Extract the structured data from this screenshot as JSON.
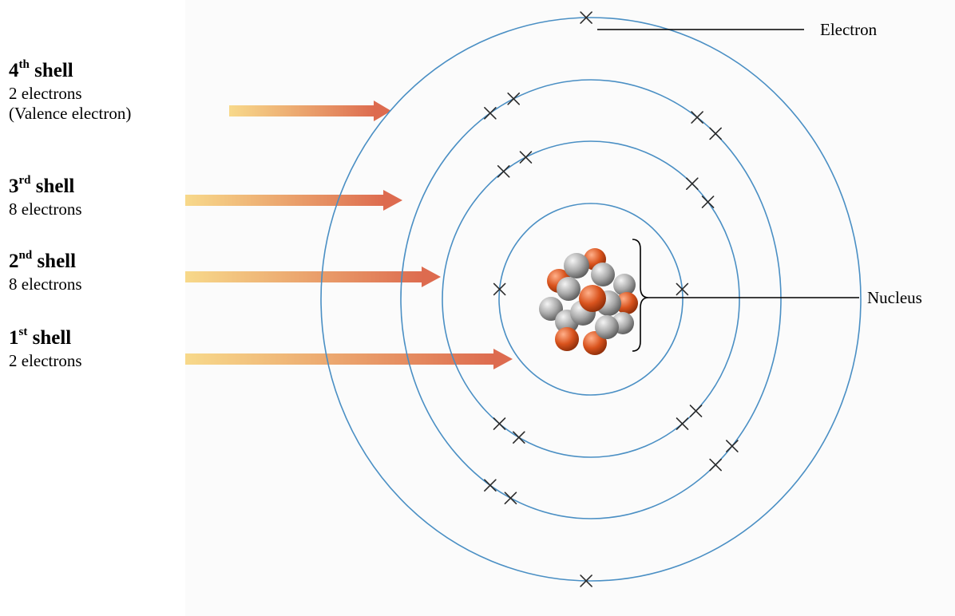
{
  "shells": [
    {
      "number": "4",
      "ordinal": "th",
      "word": "shell",
      "count_text": "2 electrons",
      "note": "(Valence electron)",
      "electrons": 2
    },
    {
      "number": "3",
      "ordinal": "rd",
      "word": "shell",
      "count_text": "8 electrons",
      "note": "",
      "electrons": 8
    },
    {
      "number": "2",
      "ordinal": "nd",
      "word": "shell",
      "count_text": "8 electrons",
      "note": "",
      "electrons": 8
    },
    {
      "number": "1",
      "ordinal": "st",
      "word": "shell",
      "count_text": "2 electrons",
      "note": "",
      "electrons": 2
    }
  ],
  "callouts": {
    "electron": "Electron",
    "nucleus": "Nucleus"
  },
  "colors": {
    "orbit": "#4a8fc4",
    "proton": "#d9531d",
    "neutron": "#a9a9a9",
    "arrow_start": "#f7d57e",
    "arrow_end": "#dd6b4f"
  }
}
